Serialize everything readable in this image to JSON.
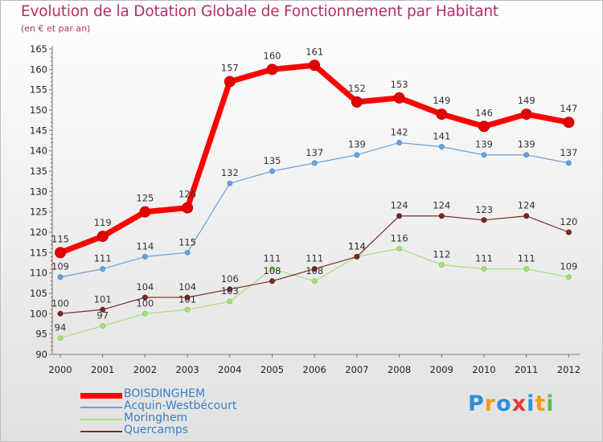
{
  "chart_data": {
    "type": "line",
    "title": "Evolution de la Dotation Globale de Fonctionnement par Habitant",
    "subtitle": "(en € et par an)",
    "xlabel": "",
    "ylabel": "",
    "ylim": [
      90,
      165
    ],
    "yticks": [
      90,
      95,
      100,
      105,
      110,
      115,
      120,
      125,
      130,
      135,
      140,
      145,
      150,
      155,
      160,
      165
    ],
    "categories": [
      "2000",
      "2001",
      "2002",
      "2003",
      "2004",
      "2005",
      "2006",
      "2007",
      "2008",
      "2009",
      "2010",
      "2011",
      "2012"
    ],
    "grid": false,
    "legend_position": "bottom-left",
    "series": [
      {
        "name": "BOISDINGHEM",
        "color": "#ff0000",
        "marker": "#cc0000",
        "values": [
          115,
          119,
          125,
          126,
          157,
          160,
          161,
          152,
          153,
          149,
          146,
          149,
          147
        ]
      },
      {
        "name": "Acquin-Westbécourt",
        "color": "#6ca0d8",
        "marker": "#5b91cc",
        "values": [
          109,
          111,
          114,
          115,
          132,
          135,
          137,
          139,
          142,
          141,
          139,
          139,
          137
        ]
      },
      {
        "name": "Moringhem",
        "color": "#a6e07a",
        "marker": "#8dd35a",
        "values": [
          94,
          97,
          100,
          101,
          103,
          111,
          108,
          114,
          116,
          112,
          111,
          111,
          109
        ]
      },
      {
        "name": "Quercamps",
        "color": "#7a2a2a",
        "marker": "#6b1e1e",
        "values": [
          100,
          101,
          104,
          104,
          106,
          108,
          111,
          114,
          124,
          124,
          123,
          124,
          120
        ]
      }
    ]
  },
  "logo": {
    "letters": [
      "P",
      "r",
      "o",
      "x",
      "i",
      "t",
      "i"
    ],
    "colors": [
      "#2f8fd8",
      "#f29a1f",
      "#2f8fd8",
      "#e23b3b",
      "#2f8fd8",
      "#f29a1f",
      "#6ab846"
    ]
  }
}
